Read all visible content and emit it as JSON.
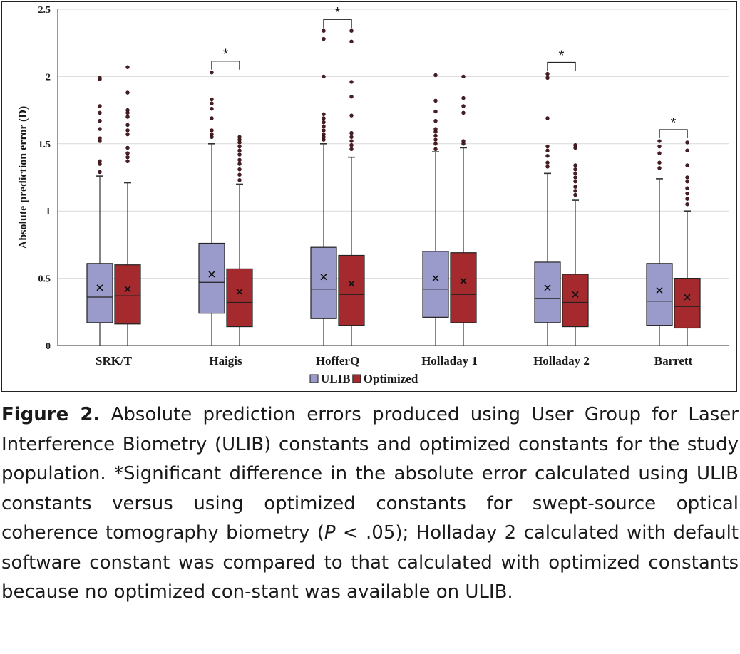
{
  "chart_data": {
    "type": "box",
    "ylabel": "Absolute prediction error (D)",
    "ylim": [
      0,
      2.5
    ],
    "yticks": [
      "0",
      "0.5",
      "1",
      "1.5",
      "2",
      "2.5"
    ],
    "categories": [
      "SRK/T",
      "Haigis",
      "HofferQ",
      "Holladay 1",
      "Holladay 2",
      "Barrett"
    ],
    "series": [
      {
        "name": "ULIB",
        "color": "#9b9bcb",
        "boxes": [
          {
            "min": 0,
            "q1": 0.17,
            "median": 0.36,
            "q3": 0.61,
            "max": 1.26,
            "mean": 0.43,
            "outliers": [
              1.29,
              1.35,
              1.37,
              1.52,
              1.54,
              1.61,
              1.67,
              1.73,
              1.78,
              1.98,
              1.99
            ]
          },
          {
            "min": 0,
            "q1": 0.24,
            "median": 0.47,
            "q3": 0.76,
            "max": 1.5,
            "mean": 0.53,
            "outliers": [
              1.55,
              1.57,
              1.6,
              1.69,
              1.76,
              1.8,
              1.83,
              2.03
            ]
          },
          {
            "min": 0,
            "q1": 0.2,
            "median": 0.42,
            "q3": 0.73,
            "max": 1.5,
            "mean": 0.51,
            "outliers": [
              1.53,
              1.55,
              1.57,
              1.6,
              1.63,
              1.66,
              1.69,
              1.72,
              2.0,
              2.28,
              2.34
            ]
          },
          {
            "min": 0,
            "q1": 0.21,
            "median": 0.42,
            "q3": 0.7,
            "max": 1.44,
            "mean": 0.5,
            "outliers": [
              1.46,
              1.5,
              1.53,
              1.56,
              1.59,
              1.61,
              1.67,
              1.74,
              1.82,
              2.01
            ]
          },
          {
            "min": 0,
            "q1": 0.17,
            "median": 0.35,
            "q3": 0.62,
            "max": 1.28,
            "mean": 0.43,
            "outliers": [
              1.33,
              1.36,
              1.41,
              1.45,
              1.48,
              1.69,
              1.99,
              2.02
            ]
          },
          {
            "min": 0,
            "q1": 0.15,
            "median": 0.33,
            "q3": 0.61,
            "max": 1.24,
            "mean": 0.41,
            "outliers": [
              1.32,
              1.36,
              1.43,
              1.48,
              1.52
            ]
          }
        ]
      },
      {
        "name": "Optimized",
        "color": "#a52a2e",
        "boxes": [
          {
            "min": 0,
            "q1": 0.16,
            "median": 0.37,
            "q3": 0.6,
            "max": 1.21,
            "mean": 0.42,
            "outliers": [
              1.37,
              1.4,
              1.43,
              1.47,
              1.57,
              1.6,
              1.64,
              1.7,
              1.73,
              1.75,
              1.88,
              2.07
            ]
          },
          {
            "min": 0,
            "q1": 0.14,
            "median": 0.32,
            "q3": 0.57,
            "max": 1.2,
            "mean": 0.4,
            "outliers": [
              1.23,
              1.27,
              1.31,
              1.35,
              1.38,
              1.42,
              1.45,
              1.48,
              1.51,
              1.53,
              1.55
            ]
          },
          {
            "min": 0,
            "q1": 0.15,
            "median": 0.38,
            "q3": 0.67,
            "max": 1.4,
            "mean": 0.46,
            "outliers": [
              1.46,
              1.49,
              1.52,
              1.55,
              1.58,
              1.71,
              1.85,
              1.96,
              2.26,
              2.34
            ]
          },
          {
            "min": 0,
            "q1": 0.17,
            "median": 0.38,
            "q3": 0.69,
            "max": 1.47,
            "mean": 0.48,
            "outliers": [
              1.5,
              1.52,
              1.73,
              1.78,
              1.84,
              2.0
            ]
          },
          {
            "min": 0,
            "q1": 0.14,
            "median": 0.32,
            "q3": 0.53,
            "max": 1.08,
            "mean": 0.38,
            "outliers": [
              1.12,
              1.15,
              1.18,
              1.22,
              1.25,
              1.28,
              1.31,
              1.34,
              1.47,
              1.49
            ]
          },
          {
            "min": 0,
            "q1": 0.13,
            "median": 0.29,
            "q3": 0.5,
            "max": 1.0,
            "mean": 0.36,
            "outliers": [
              1.05,
              1.09,
              1.13,
              1.17,
              1.22,
              1.25,
              1.34,
              1.45,
              1.51
            ]
          }
        ]
      }
    ],
    "significance": [
      {
        "category": "Haigis",
        "label": "*"
      },
      {
        "category": "HofferQ",
        "label": "*"
      },
      {
        "category": "Holladay 2",
        "label": "*"
      },
      {
        "category": "Barrett",
        "label": "*"
      }
    ],
    "grid": "horizontal",
    "legend": "bottom-center"
  },
  "caption": {
    "label": "Figure 2.",
    "text_before_italic": " Absolute prediction errors produced using User Group for Laser Interference Biometry (ULIB) constants and optimized constants for the study population. *Significant difference in the absolute error calculated using ULIB constants versus using optimized constants for swept-source optical coherence tomography biometry (",
    "italic": "P",
    "text_after_italic": " < .05); Holladay 2 calculated with default software constant was compared to that calculated with optimized constants because no optimized con-stant was available on ULIB."
  }
}
